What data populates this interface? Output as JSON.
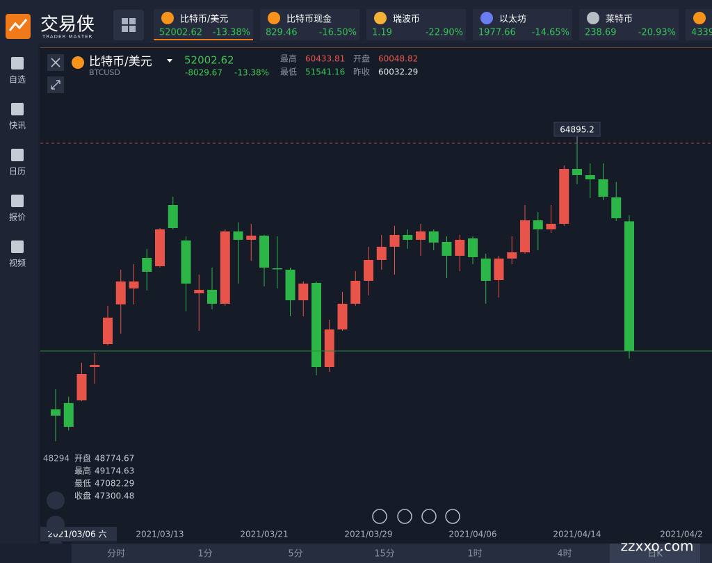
{
  "header": {
    "logo_title": "交易侠",
    "logo_subtitle": "TRADER MASTER"
  },
  "tickers": [
    {
      "name": "比特币/美元",
      "price": "52002.62",
      "change": "-13.38%",
      "icon_color": "#f7931a"
    },
    {
      "name": "比特币现金",
      "price": "829.46",
      "change": "-16.50%",
      "icon_color": "#f7931a"
    },
    {
      "name": "瑞波币",
      "price": "1.19",
      "change": "-22.90%",
      "icon_color": "#f5b335"
    },
    {
      "name": "以太坊",
      "price": "1977.66",
      "change": "-14.65%",
      "icon_color": "#6a7cf2"
    },
    {
      "name": "莱特币",
      "price": "238.69",
      "change": "-20.93%",
      "icon_color": "#b8bcc4"
    },
    {
      "price": "4339",
      "icon_color": "#f7931a"
    }
  ],
  "sidebar": [
    "自选",
    "快讯",
    "日历",
    "报价",
    "视频"
  ],
  "quote": {
    "name": "比特币/美元",
    "code": "BTCUSD",
    "price": 52002.62,
    "change": -8029.67,
    "change_pct": "-13.38%",
    "stats": [
      {
        "label": "最高",
        "value": 60433.81,
        "color": "#e8574d"
      },
      {
        "label": "开盘",
        "value": 60048.82,
        "color": "#e8574d"
      },
      {
        "label": "最低",
        "value": 51541.16,
        "color": "#35c256"
      },
      {
        "label": "昨收",
        "value": 60032.29,
        "color": "#e6e8ee"
      }
    ]
  },
  "chart_data": {
    "type": "candlestick",
    "categories": [
      null,
      null,
      null,
      null,
      null,
      null,
      null,
      null,
      "2021/03/13",
      null,
      null,
      null,
      null,
      null,
      null,
      null,
      "2021/03/21",
      null,
      null,
      null,
      null,
      null,
      null,
      null,
      "2021/03/29",
      null,
      null,
      null,
      null,
      null,
      null,
      null,
      "2021/04/06",
      null,
      null,
      null,
      null,
      null,
      null,
      null,
      "2021/04/14",
      null,
      null,
      null,
      null,
      null,
      null,
      null,
      "2021/04/2"
    ],
    "open": [
      48381,
      48774.67,
      48941,
      51011,
      52434,
      54892,
      55884,
      57781,
      57264,
      61058,
      58859,
      55582,
      55798,
      54935,
      59420,
      58902,
      59161,
      57134,
      57048,
      55151,
      56229,
      51011,
      53340,
      54935,
      56358,
      57652,
      58471,
      59204,
      58902,
      59420,
      58773,
      57910,
      58988,
      57738,
      56401,
      57738,
      58126,
      60110,
      59549,
      59894,
      63300,
      62912,
      62654,
      61533,
      60048.82,
      null,
      null,
      null,
      null
    ],
    "high": [
      49631,
      49174.63,
      51270,
      51874,
      54806,
      57048,
      57393,
      58342,
      59635,
      61576,
      59118,
      56746,
      57177,
      59549,
      59980,
      59894,
      59204,
      59118,
      57177,
      56315,
      56315,
      53943,
      55668,
      56962,
      58471,
      59204,
      59765,
      59549,
      59894,
      59549,
      59118,
      59204,
      59118,
      58040,
      57910,
      59118,
      61058,
      60627,
      61058,
      63516,
      64895.2,
      63645,
      63645,
      62481,
      60433.81,
      null,
      null,
      null,
      null
    ],
    "low": [
      46397,
      47082.29,
      48900,
      49976,
      52348,
      53081,
      54892,
      55754,
      57177,
      59549,
      54461,
      53253,
      54590,
      54806,
      56186,
      57609,
      56013,
      55884,
      54159,
      54159,
      50494,
      50709,
      53253,
      54806,
      55453,
      57048,
      56746,
      58342,
      57910,
      58255,
      56531,
      56962,
      57393,
      54935,
      55323,
      57393,
      58040,
      58255,
      59333,
      59765,
      62352,
      61489,
      61360,
      60066,
      51541.16,
      null,
      null,
      null,
      null
    ],
    "close": [
      47993,
      47300.48,
      50580,
      51141,
      54073,
      56315,
      56315,
      56919,
      59549,
      59635,
      56186,
      55798,
      54935,
      59420,
      58902,
      59161,
      57177,
      57091,
      55151,
      56186,
      51011,
      53340,
      54935,
      56358,
      57652,
      58471,
      59204,
      58902,
      59420,
      58730,
      57910,
      58902,
      57824,
      56358,
      57738,
      58126,
      60110,
      59549,
      59894,
      63300,
      62912,
      62654,
      61576,
      60239,
      52002.62,
      null,
      null,
      null,
      null
    ],
    "up_color": "#e8534a",
    "down_color": "#2db648",
    "ylim": [
      41223,
      69035
    ],
    "max_marker": 64895.2
  },
  "crosshair": {
    "date": "2021/03/06 六",
    "price": 48294,
    "labels": [
      "开盘",
      "最高",
      "最低",
      "收盘"
    ],
    "index": 1
  },
  "timeframes": [
    "分时",
    "1分",
    "5分",
    "15分",
    "1时",
    "4时",
    "日K"
  ],
  "selected_timeframe": 6,
  "watermark": "zzxxo.com"
}
